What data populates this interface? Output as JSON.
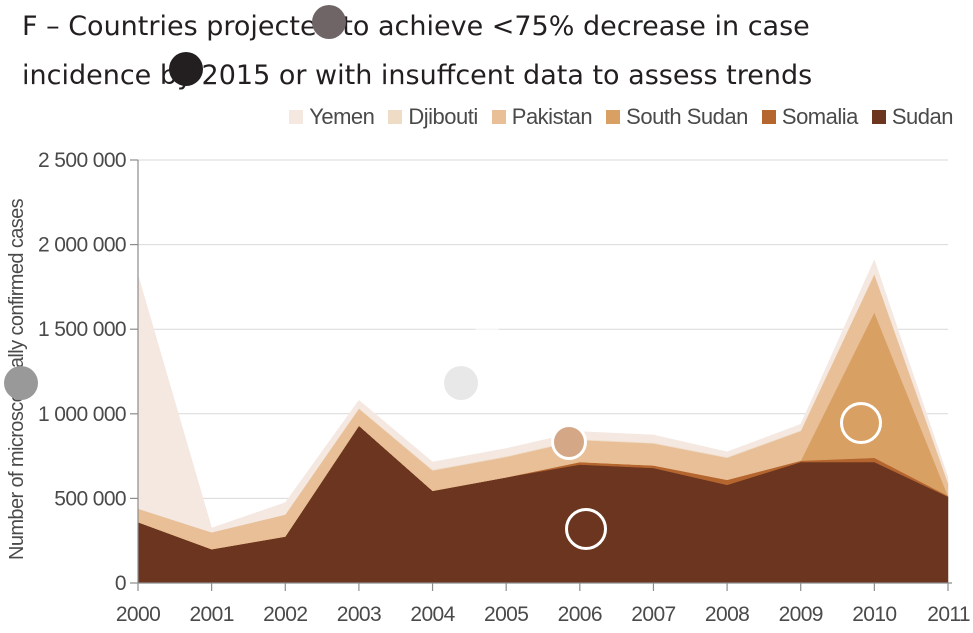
{
  "title": {
    "line1": "F – Countries projected to achieve <75% decrease in case",
    "line2": "incidence by 2015 or with insuffcent data to assess trends"
  },
  "chart_data": {
    "type": "area",
    "stacked": true,
    "x": [
      "2000",
      "2001",
      "2002",
      "2003",
      "2004",
      "2005",
      "2006",
      "2007",
      "2008",
      "2009",
      "2010",
      "2011"
    ],
    "ylabel": "Number of microscopically confirmed cases",
    "ylim": [
      0,
      2500000
    ],
    "yticks": [
      0,
      500000,
      1000000,
      1500000,
      2000000,
      2500000
    ],
    "ytick_labels": [
      "0",
      "500 000",
      "1 000 000",
      "1 500 000",
      "2 000 000",
      "2 500 000"
    ],
    "grid": true,
    "legend_position": "top-right",
    "series": [
      {
        "name": "Sudan",
        "color": "#6b3520",
        "values": [
          360000,
          200000,
          275000,
          930000,
          545000,
          625000,
          700000,
          680000,
          580000,
          715000,
          715000,
          510000
        ]
      },
      {
        "name": "Somalia",
        "color": "#b5652e",
        "values": [
          0,
          0,
          0,
          0,
          0,
          0,
          15000,
          15000,
          30000,
          8000,
          25000,
          5000
        ]
      },
      {
        "name": "South Sudan",
        "color": "#d9a064",
        "values": [
          0,
          0,
          0,
          0,
          0,
          0,
          0,
          0,
          0,
          0,
          860000,
          0
        ]
      },
      {
        "name": "Pakistan",
        "color": "#e8bf97",
        "values": [
          80000,
          100000,
          130000,
          100000,
          120000,
          120000,
          130000,
          130000,
          130000,
          175000,
          225000,
          75000
        ]
      },
      {
        "name": "Djibouti",
        "color": "#efdcc7",
        "values": [
          0,
          0,
          0,
          5000,
          5000,
          5000,
          5000,
          5000,
          5000,
          5000,
          5000,
          5000
        ]
      },
      {
        "name": "Yemen",
        "color": "#f4e8e1",
        "values": [
          1380000,
          25000,
          70000,
          45000,
          45000,
          45000,
          45000,
          45000,
          30000,
          35000,
          80000,
          30000
        ]
      }
    ]
  },
  "legend": {
    "items": [
      {
        "label": "Yemen",
        "color": "#f4e8e1"
      },
      {
        "label": "Djibouti",
        "color": "#efdcc7"
      },
      {
        "label": "Pakistan",
        "color": "#e8bf97"
      },
      {
        "label": "South Sudan",
        "color": "#d9a064"
      },
      {
        "label": "Somalia",
        "color": "#b5652e"
      },
      {
        "label": "Sudan",
        "color": "#6b3520"
      }
    ]
  },
  "colors": {
    "grid": "#d9d9d9",
    "axis": "#8c8c8c",
    "text": "#4a4a4a",
    "mark_dark": "#231f20",
    "mark_gray": "#6f6566",
    "mark_light_gray": "#999999",
    "mark_pale": "#e8e8e8"
  }
}
